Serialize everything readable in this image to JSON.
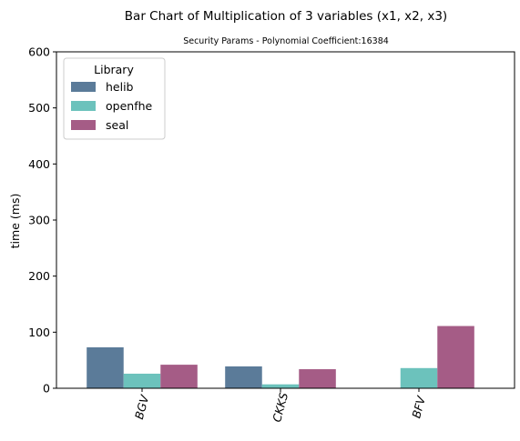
{
  "chart_data": {
    "type": "bar",
    "title": "Bar Chart of Multiplication of 3 variables (x1, x2, x3)",
    "subtitle": "Security Params - Polynomial Coefficient:16384",
    "xlabel": "",
    "ylabel": "time (ms)",
    "ylim": [
      0,
      600
    ],
    "yticks": [
      "0",
      "100",
      "200",
      "300",
      "400",
      "500",
      "600"
    ],
    "categories": [
      "BGV",
      "CKKS",
      "BFV"
    ],
    "series": [
      {
        "name": "helib",
        "color": "#5b7b99",
        "values": [
          73,
          39,
          0
        ]
      },
      {
        "name": "openfhe",
        "color": "#6cc2bc",
        "values": [
          26,
          7,
          36
        ]
      },
      {
        "name": "seal",
        "color": "#a55c86",
        "values": [
          42,
          34,
          111
        ]
      }
    ],
    "legend": {
      "title": "Library",
      "placement": "top-left"
    },
    "grid": false
  }
}
